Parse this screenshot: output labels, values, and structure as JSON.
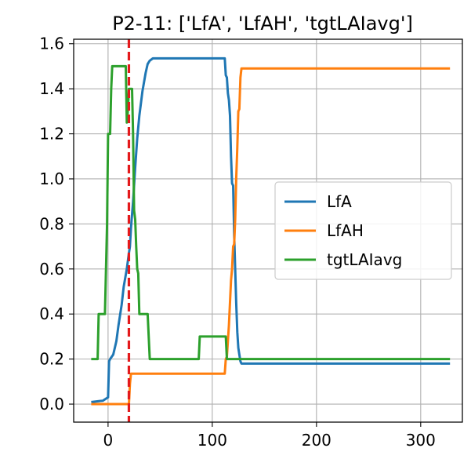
{
  "chart_data": {
    "type": "line",
    "title": "P2-11: ['LfA', 'LfAH', 'tgtLAIavg']",
    "xlabel": "",
    "ylabel": "",
    "xlim": [
      -33,
      340
    ],
    "ylim": [
      -0.08,
      1.62
    ],
    "xticks": [
      0,
      100,
      200,
      300
    ],
    "yticks": [
      0.0,
      0.2,
      0.4,
      0.6,
      0.8,
      1.0,
      1.2,
      1.4,
      1.6
    ],
    "xtick_labels": [
      "0",
      "100",
      "200",
      "300"
    ],
    "ytick_labels": [
      "0.0",
      "0.2",
      "0.4",
      "0.6",
      "0.8",
      "1.0",
      "1.2",
      "1.4",
      "1.6"
    ],
    "grid": true,
    "legend_position": "center-right",
    "vline": {
      "x": 20,
      "color": "#e41a1c",
      "style": "dashed"
    },
    "series": [
      {
        "name": "LfA",
        "color": "#1f77b4",
        "points": [
          [
            -15,
            0.01
          ],
          [
            -5,
            0.015
          ],
          [
            0,
            0.03
          ],
          [
            1,
            0.19
          ],
          [
            2,
            0.2
          ],
          [
            5,
            0.22
          ],
          [
            7,
            0.26
          ],
          [
            8,
            0.28
          ],
          [
            10,
            0.35
          ],
          [
            13,
            0.44
          ],
          [
            15,
            0.52
          ],
          [
            18,
            0.6
          ],
          [
            20,
            0.67
          ],
          [
            21,
            0.7
          ],
          [
            22,
            0.78
          ],
          [
            24,
            0.9
          ],
          [
            26,
            1.05
          ],
          [
            28,
            1.18
          ],
          [
            30,
            1.28
          ],
          [
            33,
            1.39
          ],
          [
            36,
            1.47
          ],
          [
            38,
            1.51
          ],
          [
            40,
            1.525
          ],
          [
            43,
            1.535
          ],
          [
            60,
            1.535
          ],
          [
            112,
            1.535
          ],
          [
            113,
            1.46
          ],
          [
            114,
            1.45
          ],
          [
            115,
            1.38
          ],
          [
            116,
            1.35
          ],
          [
            117,
            1.28
          ],
          [
            118,
            1.1
          ],
          [
            119,
            0.98
          ],
          [
            120,
            0.97
          ],
          [
            121,
            0.75
          ],
          [
            122,
            0.6
          ],
          [
            123,
            0.45
          ],
          [
            124,
            0.32
          ],
          [
            125,
            0.25
          ],
          [
            126,
            0.22
          ],
          [
            127,
            0.19
          ],
          [
            128,
            0.18
          ],
          [
            200,
            0.18
          ],
          [
            327,
            0.18
          ]
        ]
      },
      {
        "name": "LfAH",
        "color": "#ff7f0e",
        "points": [
          [
            -15,
            0.0
          ],
          [
            20,
            0.0
          ],
          [
            21,
            0.09
          ],
          [
            22,
            0.135
          ],
          [
            60,
            0.135
          ],
          [
            112,
            0.135
          ],
          [
            113,
            0.2
          ],
          [
            114,
            0.21
          ],
          [
            116,
            0.35
          ],
          [
            118,
            0.55
          ],
          [
            119,
            0.6
          ],
          [
            120,
            0.7
          ],
          [
            121,
            0.71
          ],
          [
            122,
            0.82
          ],
          [
            123,
            1.0
          ],
          [
            124,
            1.14
          ],
          [
            125,
            1.3
          ],
          [
            126,
            1.31
          ],
          [
            127,
            1.45
          ],
          [
            128,
            1.49
          ],
          [
            200,
            1.49
          ],
          [
            327,
            1.49
          ]
        ]
      },
      {
        "name": "tgtLAIavg",
        "color": "#2ca02c",
        "points": [
          [
            -15,
            0.2
          ],
          [
            -10,
            0.2
          ],
          [
            -9,
            0.4
          ],
          [
            -3,
            0.4
          ],
          [
            -1,
            0.8
          ],
          [
            0,
            1.2
          ],
          [
            2,
            1.2
          ],
          [
            3,
            1.4
          ],
          [
            4,
            1.5
          ],
          [
            17,
            1.5
          ],
          [
            18,
            1.25
          ],
          [
            19,
            1.3
          ],
          [
            20,
            1.4
          ],
          [
            23,
            1.4
          ],
          [
            24,
            1.2
          ],
          [
            25,
            0.86
          ],
          [
            26,
            0.82
          ],
          [
            27,
            0.7
          ],
          [
            28,
            0.6
          ],
          [
            29,
            0.58
          ],
          [
            30,
            0.4
          ],
          [
            38,
            0.4
          ],
          [
            40,
            0.2
          ],
          [
            87,
            0.2
          ],
          [
            88,
            0.3
          ],
          [
            113,
            0.3
          ],
          [
            114,
            0.2
          ],
          [
            327,
            0.2
          ]
        ]
      }
    ]
  }
}
